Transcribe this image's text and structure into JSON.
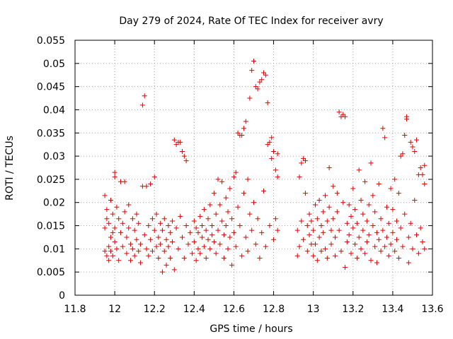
{
  "chart_data": {
    "type": "scatter",
    "title": "Day 279 of 2024, Rate Of TEC Index for receiver avry",
    "xlabel": "GPS time / hours",
    "ylabel": "ROTI / TECUs",
    "xlim": [
      11.8,
      13.6
    ],
    "ylim": [
      0,
      0.055
    ],
    "grid": true,
    "marker": "plus",
    "color": "#e00000",
    "x_ticks": [
      {
        "value": 11.8,
        "label": "11.8"
      },
      {
        "value": 12.0,
        "label": "12"
      },
      {
        "value": 12.2,
        "label": "12.2"
      },
      {
        "value": 12.4,
        "label": "12.4"
      },
      {
        "value": 12.6,
        "label": "12.6"
      },
      {
        "value": 12.8,
        "label": "12.8"
      },
      {
        "value": 13.0,
        "label": "13"
      },
      {
        "value": 13.2,
        "label": "13.2"
      },
      {
        "value": 13.4,
        "label": "13.4"
      },
      {
        "value": 13.6,
        "label": "13.6"
      }
    ],
    "y_ticks": [
      {
        "value": 0,
        "label": "0"
      },
      {
        "value": 0.005,
        "label": "0.005"
      },
      {
        "value": 0.01,
        "label": "0.01"
      },
      {
        "value": 0.015,
        "label": "0.015"
      },
      {
        "value": 0.02,
        "label": "0.02"
      },
      {
        "value": 0.025,
        "label": "0.025"
      },
      {
        "value": 0.03,
        "label": "0.03"
      },
      {
        "value": 0.035,
        "label": "0.035"
      },
      {
        "value": 0.04,
        "label": "0.04"
      },
      {
        "value": 0.045,
        "label": "0.045"
      },
      {
        "value": 0.05,
        "label": "0.05"
      },
      {
        "value": 0.055,
        "label": "0.055"
      }
    ],
    "points": [
      [
        11.95,
        0.0095
      ],
      [
        11.95,
        0.0145
      ],
      [
        11.95,
        0.0215
      ],
      [
        11.96,
        0.0085
      ],
      [
        11.96,
        0.0165
      ],
      [
        11.96,
        0.0185
      ],
      [
        11.97,
        0.0105
      ],
      [
        11.97,
        0.0075
      ],
      [
        11.97,
        0.0155
      ],
      [
        11.98,
        0.0205
      ],
      [
        11.98,
        0.0125
      ],
      [
        11.98,
        0.0095
      ],
      [
        11.99,
        0.0175
      ],
      [
        11.99,
        0.0135
      ],
      [
        11.99,
        0.0085
      ],
      [
        12.0,
        0.0255
      ],
      [
        12.0,
        0.0265
      ],
      [
        12.0,
        0.0115
      ],
      [
        12.0,
        0.0145
      ],
      [
        12.01,
        0.01
      ],
      [
        12.01,
        0.019
      ],
      [
        12.02,
        0.0165
      ],
      [
        12.02,
        0.0075
      ],
      [
        12.03,
        0.0245
      ],
      [
        12.03,
        0.0135
      ],
      [
        12.04,
        0.0105
      ],
      [
        12.04,
        0.0155
      ],
      [
        12.05,
        0.0245
      ],
      [
        12.05,
        0.018
      ],
      [
        12.06,
        0.009
      ],
      [
        12.06,
        0.0125
      ],
      [
        12.07,
        0.0195
      ],
      [
        12.07,
        0.0145
      ],
      [
        12.08,
        0.011
      ],
      [
        12.08,
        0.0075
      ],
      [
        12.09,
        0.0165
      ],
      [
        12.09,
        0.01
      ],
      [
        12.1,
        0.014
      ],
      [
        12.1,
        0.0085
      ],
      [
        12.11,
        0.0175
      ],
      [
        12.11,
        0.012
      ],
      [
        12.12,
        0.0095
      ],
      [
        12.12,
        0.0155
      ],
      [
        12.13,
        0.011
      ],
      [
        12.13,
        0.007
      ],
      [
        12.14,
        0.041
      ],
      [
        12.15,
        0.043
      ],
      [
        12.14,
        0.0235
      ],
      [
        12.15,
        0.013
      ],
      [
        12.16,
        0.0235
      ],
      [
        12.16,
        0.01
      ],
      [
        12.17,
        0.015
      ],
      [
        12.17,
        0.0085
      ],
      [
        12.18,
        0.024
      ],
      [
        12.18,
        0.012
      ],
      [
        12.19,
        0.0165
      ],
      [
        12.19,
        0.0095
      ],
      [
        12.2,
        0.0255
      ],
      [
        12.2,
        0.014
      ],
      [
        12.21,
        0.0105
      ],
      [
        12.21,
        0.0175
      ],
      [
        12.22,
        0.0125
      ],
      [
        12.22,
        0.008
      ],
      [
        12.23,
        0.0155
      ],
      [
        12.23,
        0.011
      ],
      [
        12.24,
        0.005
      ],
      [
        12.24,
        0.014
      ],
      [
        12.25,
        0.0165
      ],
      [
        12.25,
        0.0095
      ],
      [
        12.26,
        0.012
      ],
      [
        12.26,
        0.0065
      ],
      [
        12.27,
        0.015
      ],
      [
        12.27,
        0.0105
      ],
      [
        12.28,
        0.0135
      ],
      [
        12.28,
        0.008
      ],
      [
        12.29,
        0.016
      ],
      [
        12.29,
        0.0115
      ],
      [
        12.3,
        0.0335
      ],
      [
        12.31,
        0.0325
      ],
      [
        12.32,
        0.033
      ],
      [
        12.33,
        0.033
      ],
      [
        12.34,
        0.031
      ],
      [
        12.35,
        0.03
      ],
      [
        12.36,
        0.029
      ],
      [
        12.3,
        0.0055
      ],
      [
        12.31,
        0.0145
      ],
      [
        12.32,
        0.01
      ],
      [
        12.33,
        0.017
      ],
      [
        12.34,
        0.0125
      ],
      [
        12.35,
        0.008
      ],
      [
        12.36,
        0.015
      ],
      [
        12.37,
        0.011
      ],
      [
        12.38,
        0.0135
      ],
      [
        12.39,
        0.009
      ],
      [
        12.4,
        0.016
      ],
      [
        12.4,
        0.0115
      ],
      [
        12.41,
        0.0075
      ],
      [
        12.41,
        0.0145
      ],
      [
        12.42,
        0.01
      ],
      [
        12.42,
        0.0135
      ],
      [
        12.43,
        0.017
      ],
      [
        12.43,
        0.009
      ],
      [
        12.44,
        0.0125
      ],
      [
        12.44,
        0.015
      ],
      [
        12.45,
        0.0105
      ],
      [
        12.45,
        0.0185
      ],
      [
        12.46,
        0.014
      ],
      [
        12.46,
        0.008
      ],
      [
        12.47,
        0.0165
      ],
      [
        12.47,
        0.012
      ],
      [
        12.48,
        0.0195
      ],
      [
        12.48,
        0.01
      ],
      [
        12.49,
        0.015
      ],
      [
        12.49,
        0.013
      ],
      [
        12.5,
        0.022
      ],
      [
        12.5,
        0.0115
      ],
      [
        12.51,
        0.0175
      ],
      [
        12.51,
        0.009
      ],
      [
        12.52,
        0.025
      ],
      [
        12.52,
        0.014
      ],
      [
        12.53,
        0.0195
      ],
      [
        12.53,
        0.011
      ],
      [
        12.54,
        0.016
      ],
      [
        12.54,
        0.0245
      ],
      [
        12.55,
        0.013
      ],
      [
        12.55,
        0.008
      ],
      [
        12.56,
        0.021
      ],
      [
        12.56,
        0.015
      ],
      [
        12.57,
        0.01
      ],
      [
        12.57,
        0.018
      ],
      [
        12.58,
        0.023
      ],
      [
        12.58,
        0.0125
      ],
      [
        12.59,
        0.0165
      ],
      [
        12.59,
        0.0065
      ],
      [
        12.6,
        0.0255
      ],
      [
        12.6,
        0.0135
      ],
      [
        12.61,
        0.0265
      ],
      [
        12.61,
        0.0105
      ],
      [
        12.62,
        0.035
      ],
      [
        12.63,
        0.0345
      ],
      [
        12.64,
        0.0345
      ],
      [
        12.65,
        0.036
      ],
      [
        12.66,
        0.0375
      ],
      [
        12.62,
        0.019
      ],
      [
        12.63,
        0.015
      ],
      [
        12.64,
        0.0085
      ],
      [
        12.65,
        0.022
      ],
      [
        12.66,
        0.0125
      ],
      [
        12.67,
        0.025
      ],
      [
        12.67,
        0.0095
      ],
      [
        12.68,
        0.0425
      ],
      [
        12.68,
        0.0175
      ],
      [
        12.69,
        0.0485
      ],
      [
        12.69,
        0.014
      ],
      [
        12.7,
        0.0505
      ],
      [
        12.7,
        0.02
      ],
      [
        12.71,
        0.045
      ],
      [
        12.71,
        0.011
      ],
      [
        12.72,
        0.0445
      ],
      [
        12.72,
        0.0165
      ],
      [
        12.73,
        0.046
      ],
      [
        12.73,
        0.008
      ],
      [
        12.74,
        0.0465
      ],
      [
        12.74,
        0.0135
      ],
      [
        12.75,
        0.048
      ],
      [
        12.75,
        0.0225
      ],
      [
        12.76,
        0.0475
      ],
      [
        12.76,
        0.0105
      ],
      [
        12.77,
        0.0415
      ],
      [
        12.77,
        0.0325
      ],
      [
        12.78,
        0.033
      ],
      [
        12.78,
        0.015
      ],
      [
        12.79,
        0.034
      ],
      [
        12.79,
        0.0295
      ],
      [
        12.8,
        0.031
      ],
      [
        12.8,
        0.012
      ],
      [
        12.81,
        0.027
      ],
      [
        12.81,
        0.0165
      ],
      [
        12.82,
        0.0255
      ],
      [
        12.82,
        0.014
      ],
      [
        12.82,
        0.0305
      ],
      [
        12.92,
        0.0085
      ],
      [
        12.92,
        0.014
      ],
      [
        12.93,
        0.0255
      ],
      [
        12.93,
        0.0105
      ],
      [
        12.94,
        0.0285
      ],
      [
        12.94,
        0.016
      ],
      [
        12.95,
        0.0295
      ],
      [
        12.95,
        0.012
      ],
      [
        12.96,
        0.029
      ],
      [
        12.96,
        0.022
      ],
      [
        12.97,
        0.015
      ],
      [
        12.97,
        0.0095
      ],
      [
        12.98,
        0.0175
      ],
      [
        12.98,
        0.013
      ],
      [
        12.99,
        0.011
      ],
      [
        12.99,
        0.016
      ],
      [
        13.0,
        0.0085
      ],
      [
        13.0,
        0.014
      ],
      [
        13.01,
        0.0195
      ],
      [
        13.01,
        0.011
      ],
      [
        13.02,
        0.0165
      ],
      [
        13.02,
        0.0075
      ],
      [
        13.03,
        0.0205
      ],
      [
        13.03,
        0.0125
      ],
      [
        13.04,
        0.015
      ],
      [
        13.04,
        0.0095
      ],
      [
        13.05,
        0.018
      ],
      [
        13.05,
        0.0135
      ],
      [
        13.06,
        0.0215
      ],
      [
        13.06,
        0.01
      ],
      [
        13.07,
        0.016
      ],
      [
        13.07,
        0.008
      ],
      [
        13.08,
        0.0275
      ],
      [
        13.08,
        0.019
      ],
      [
        13.09,
        0.014
      ],
      [
        13.09,
        0.011
      ],
      [
        13.1,
        0.0235
      ],
      [
        13.1,
        0.0165
      ],
      [
        13.11,
        0.0125
      ],
      [
        13.11,
        0.0085
      ],
      [
        13.12,
        0.022
      ],
      [
        13.12,
        0.018
      ],
      [
        13.13,
        0.0395
      ],
      [
        13.13,
        0.014
      ],
      [
        13.14,
        0.0385
      ],
      [
        13.14,
        0.0095
      ],
      [
        13.15,
        0.039
      ],
      [
        13.15,
        0.02
      ],
      [
        13.16,
        0.0385
      ],
      [
        13.16,
        0.006
      ],
      [
        13.17,
        0.0155
      ],
      [
        13.17,
        0.0115
      ],
      [
        13.18,
        0.0195
      ],
      [
        13.18,
        0.013
      ],
      [
        13.19,
        0.017
      ],
      [
        13.19,
        0.009
      ],
      [
        13.2,
        0.023
      ],
      [
        13.2,
        0.0145
      ],
      [
        13.21,
        0.011
      ],
      [
        13.21,
        0.0185
      ],
      [
        13.22,
        0.0155
      ],
      [
        13.22,
        0.008
      ],
      [
        13.23,
        0.027
      ],
      [
        13.23,
        0.0125
      ],
      [
        13.24,
        0.0205
      ],
      [
        13.24,
        0.01
      ],
      [
        13.25,
        0.0175
      ],
      [
        13.25,
        0.014
      ],
      [
        13.26,
        0.0245
      ],
      [
        13.26,
        0.009
      ],
      [
        13.27,
        0.016
      ],
      [
        13.27,
        0.0115
      ],
      [
        13.28,
        0.0195
      ],
      [
        13.28,
        0.013
      ],
      [
        13.29,
        0.0285
      ],
      [
        13.29,
        0.0075
      ],
      [
        13.3,
        0.0215
      ],
      [
        13.3,
        0.015
      ],
      [
        13.31,
        0.0105
      ],
      [
        13.31,
        0.018
      ],
      [
        13.32,
        0.0135
      ],
      [
        13.32,
        0.007
      ],
      [
        13.33,
        0.024
      ],
      [
        13.33,
        0.012
      ],
      [
        13.34,
        0.0165
      ],
      [
        13.34,
        0.0095
      ],
      [
        13.35,
        0.036
      ],
      [
        13.35,
        0.014
      ],
      [
        13.36,
        0.034
      ],
      [
        13.36,
        0.0105
      ],
      [
        13.37,
        0.019
      ],
      [
        13.37,
        0.0125
      ],
      [
        13.38,
        0.0155
      ],
      [
        13.38,
        0.0085
      ],
      [
        13.39,
        0.023
      ],
      [
        13.39,
        0.011
      ],
      [
        13.4,
        0.0185
      ],
      [
        13.4,
        0.0135
      ],
      [
        13.41,
        0.025
      ],
      [
        13.41,
        0.0095
      ],
      [
        13.42,
        0.016
      ],
      [
        13.42,
        0.012
      ],
      [
        13.43,
        0.022
      ],
      [
        13.43,
        0.008
      ],
      [
        13.44,
        0.03
      ],
      [
        13.44,
        0.0145
      ],
      [
        13.45,
        0.0305
      ],
      [
        13.45,
        0.0105
      ],
      [
        13.46,
        0.0345
      ],
      [
        13.46,
        0.0175
      ],
      [
        13.47,
        0.038
      ],
      [
        13.47,
        0.0385
      ],
      [
        13.48,
        0.0125
      ],
      [
        13.48,
        0.007
      ],
      [
        13.49,
        0.033
      ],
      [
        13.49,
        0.0155
      ],
      [
        13.5,
        0.032
      ],
      [
        13.5,
        0.01
      ],
      [
        13.51,
        0.031
      ],
      [
        13.51,
        0.0205
      ],
      [
        13.52,
        0.0335
      ],
      [
        13.52,
        0.013
      ],
      [
        13.53,
        0.026
      ],
      [
        13.53,
        0.009
      ],
      [
        13.54,
        0.0275
      ],
      [
        13.54,
        0.0145
      ],
      [
        13.55,
        0.026
      ],
      [
        13.55,
        0.0115
      ],
      [
        13.56,
        0.024
      ],
      [
        13.56,
        0.01
      ],
      [
        13.56,
        0.028
      ]
    ]
  }
}
